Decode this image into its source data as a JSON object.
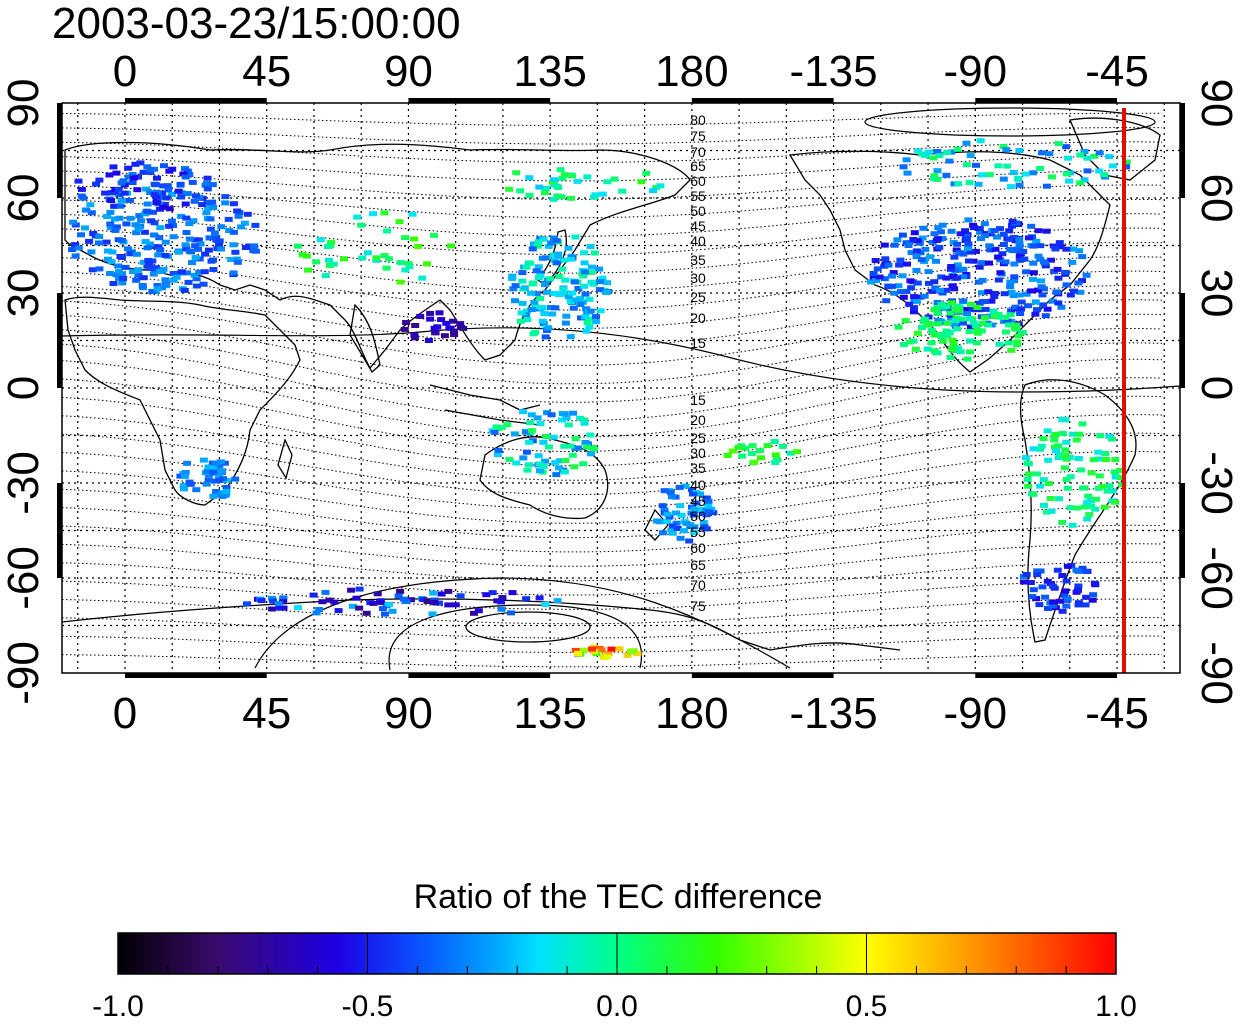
{
  "title": "2003-03-23/15:00:00",
  "top_lon_ticks": [
    "0",
    "45",
    "90",
    "135",
    "180",
    "-135",
    "-90",
    "-45"
  ],
  "bottom_lon_ticks": [
    "0",
    "45",
    "90",
    "135",
    "180",
    "-135",
    "-90",
    "-45"
  ],
  "left_lat_ticks": [
    "90",
    "60",
    "30",
    "0",
    "-30",
    "-60",
    "-90"
  ],
  "right_lat_ticks": [
    "90",
    "60",
    "30",
    "0",
    "-30",
    "-60",
    "-90"
  ],
  "contour_labels_north": [
    "80",
    "75",
    "70",
    "65",
    "60",
    "55",
    "50",
    "45",
    "40",
    "35",
    "30",
    "25",
    "20",
    "15"
  ],
  "contour_labels_south": [
    "15",
    "20",
    "25",
    "30",
    "35",
    "40",
    "45",
    "50",
    "55",
    "60",
    "65",
    "70",
    "75"
  ],
  "colorbar": {
    "label": "Ratio of the TEC difference",
    "ticks": [
      "-1.0",
      "-0.5",
      "0.0",
      "0.5",
      "1.0"
    ],
    "range": [
      -1.0,
      1.0
    ]
  },
  "map": {
    "lon_range": [
      -20,
      335
    ],
    "lat_range": [
      -90,
      90
    ],
    "grid": true,
    "terminator_line": {
      "lon": -45,
      "color": "#dd1100"
    }
  },
  "colors": {
    "cb_stops": [
      "#000000",
      "#3a0a6e",
      "#1e00e6",
      "#0a50ff",
      "#00e0ff",
      "#00ff66",
      "#33ff00",
      "#ffff00",
      "#ff8800",
      "#ff0000"
    ]
  }
}
